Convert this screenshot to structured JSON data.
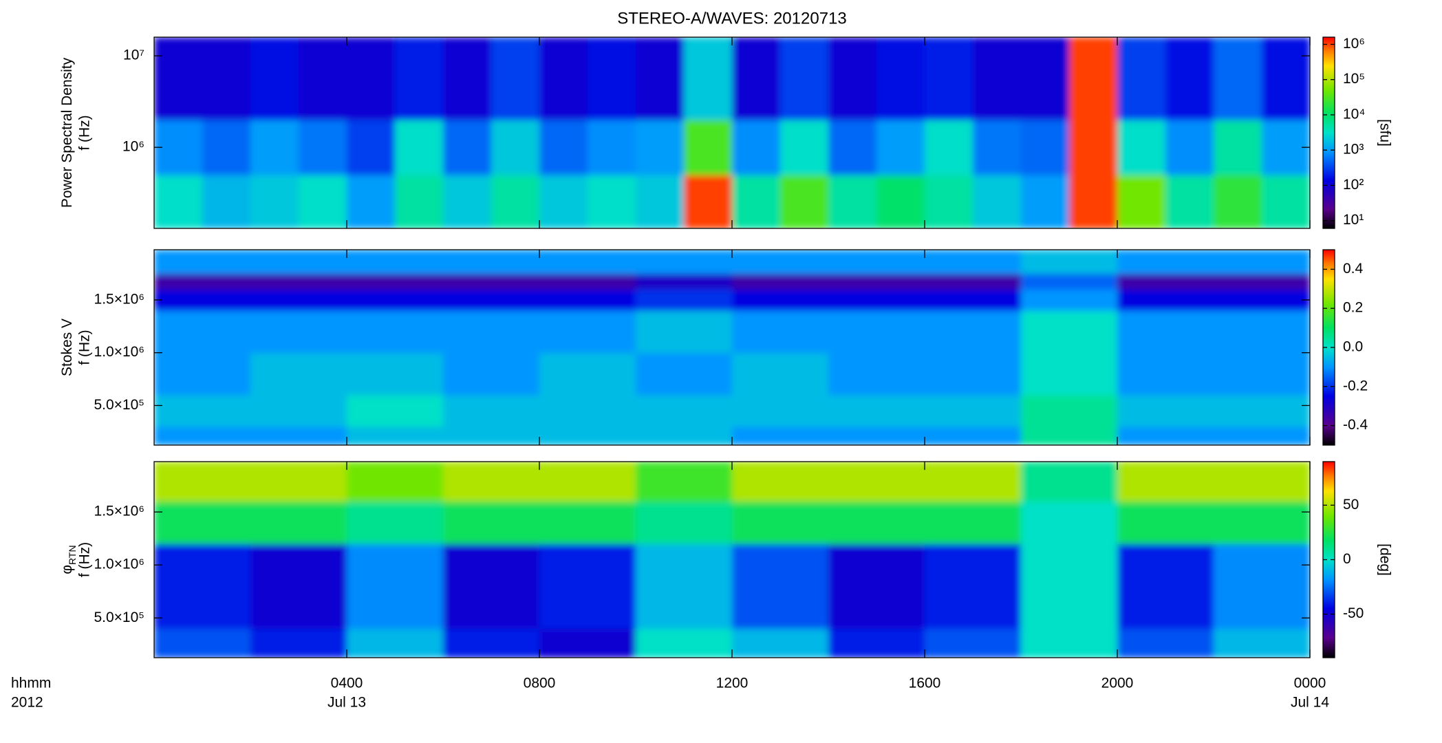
{
  "title": "STEREO-A/WAVES: 20120713",
  "x_axis": {
    "xlim": [
      0,
      24
    ],
    "xticks": [
      {
        "value": 4,
        "label": "0400"
      },
      {
        "value": 8,
        "label": "0800"
      },
      {
        "value": 12,
        "label": "1200"
      },
      {
        "value": 16,
        "label": "1600"
      },
      {
        "value": 20,
        "label": "2000"
      },
      {
        "value": 24,
        "label": "0000"
      }
    ],
    "date_ticks": [
      {
        "value": 4,
        "label": "Jul 13"
      },
      {
        "value": 24,
        "label": "Jul 14"
      }
    ],
    "time_label": "hhmm",
    "year_label": "2012"
  },
  "chart_data": [
    {
      "type": "heatmap",
      "y_label": "Power Spectral Density",
      "y_sublabel": "f (Hz)",
      "y_log": true,
      "ylim": [
        130000,
        16000000
      ],
      "yticks": [
        {
          "value": 1000000,
          "label": "10⁶"
        },
        {
          "value": 10000000,
          "label": "10⁷"
        }
      ],
      "color_log": true,
      "clim": [
        6,
        1600000
      ],
      "cticks": [
        {
          "value": 10,
          "label": "10¹"
        },
        {
          "value": 100,
          "label": "10²"
        },
        {
          "value": 1000,
          "label": "10³"
        },
        {
          "value": 10000,
          "label": "10⁴"
        },
        {
          "value": 100000,
          "label": "10⁵"
        },
        {
          "value": 1000000,
          "label": "10⁶"
        }
      ],
      "color_label": "[sfu]",
      "x_bins": [
        0,
        1,
        2,
        3,
        4,
        5,
        6,
        7,
        8,
        9,
        10,
        11,
        12,
        13,
        14,
        15,
        16,
        17,
        18,
        19,
        20,
        21,
        22,
        23,
        24
      ],
      "y_bins": [
        130000,
        500000,
        2000000,
        16000000
      ],
      "values": [
        [
          3000,
          1500,
          2000,
          3000,
          1000,
          5000,
          2000,
          5000,
          2000,
          3000,
          2000,
          1000000,
          5000,
          30000,
          5000,
          10000,
          5000,
          2000,
          1000,
          1000000,
          50000,
          5000,
          20000,
          5000
        ],
        [
          800,
          500,
          1000,
          600,
          300,
          3000,
          500,
          2000,
          500,
          800,
          1000,
          30000,
          800,
          3000,
          500,
          1000,
          3000,
          600,
          500,
          1000000,
          3000,
          800,
          5000,
          1000
        ],
        [
          100,
          100,
          150,
          100,
          100,
          200,
          100,
          300,
          100,
          150,
          100,
          2000,
          100,
          300,
          100,
          150,
          200,
          100,
          100,
          1000000,
          300,
          150,
          500,
          150
        ]
      ]
    },
    {
      "type": "heatmap",
      "y_label": "Stokes V",
      "y_sublabel": "f (Hz)",
      "y_log": false,
      "ylim": [
        125000,
        1975000
      ],
      "yticks": [
        {
          "value": 500000,
          "label": "5.0×10⁵"
        },
        {
          "value": 1000000,
          "label": "1.0×10⁶"
        },
        {
          "value": 1500000,
          "label": "1.5×10⁶"
        }
      ],
      "color_log": false,
      "clim": [
        -0.5,
        0.5
      ],
      "cticks": [
        -0.4,
        -0.2,
        {
          "value": 0,
          "label": "0.0"
        },
        0.2,
        0.4
      ],
      "x_bins": [
        0,
        2,
        4,
        6,
        8,
        10,
        12,
        14,
        16,
        18,
        20,
        22,
        24
      ],
      "y_bins": [
        125000,
        300000,
        600000,
        1000000,
        1400000,
        1600000,
        1750000,
        1975000
      ],
      "values": [
        [
          -0.1,
          -0.1,
          -0.05,
          -0.05,
          -0.05,
          -0.05,
          -0.1,
          -0.1,
          -0.1,
          0.05,
          -0.1,
          -0.1
        ],
        [
          -0.05,
          -0.05,
          0,
          -0.05,
          -0.05,
          -0.05,
          -0.05,
          -0.05,
          -0.05,
          0.05,
          -0.05,
          -0.05
        ],
        [
          -0.1,
          -0.05,
          -0.05,
          -0.1,
          -0.05,
          -0.1,
          -0.05,
          -0.1,
          -0.1,
          0,
          -0.1,
          -0.1
        ],
        [
          -0.1,
          -0.1,
          -0.1,
          -0.1,
          -0.1,
          -0.05,
          -0.1,
          -0.1,
          -0.1,
          0,
          -0.1,
          -0.1
        ],
        [
          -0.25,
          -0.25,
          -0.25,
          -0.25,
          -0.25,
          -0.2,
          -0.25,
          -0.25,
          -0.25,
          -0.1,
          -0.25,
          -0.25
        ],
        [
          -0.35,
          -0.35,
          -0.35,
          -0.35,
          -0.35,
          -0.3,
          -0.35,
          -0.35,
          -0.35,
          -0.15,
          -0.35,
          -0.35
        ],
        [
          -0.1,
          -0.1,
          -0.1,
          -0.1,
          -0.1,
          -0.1,
          -0.1,
          -0.1,
          -0.1,
          -0.05,
          -0.1,
          -0.1
        ]
      ]
    },
    {
      "type": "heatmap",
      "y_label": "φ",
      "y_label_sub": "RTN",
      "y_sublabel": "f (Hz)",
      "y_log": false,
      "ylim": [
        125000,
        1975000
      ],
      "yticks": [
        {
          "value": 500000,
          "label": "5.0×10⁵"
        },
        {
          "value": 1000000,
          "label": "1.0×10⁶"
        },
        {
          "value": 1500000,
          "label": "1.5×10⁶"
        }
      ],
      "color_log": false,
      "clim": [
        -90,
        90
      ],
      "cticks": [
        -50,
        0,
        50
      ],
      "color_label": "[deg]",
      "x_bins": [
        0,
        2,
        4,
        6,
        8,
        10,
        12,
        14,
        16,
        18,
        20,
        22,
        24
      ],
      "y_bins": [
        125000,
        400000,
        1200000,
        1600000,
        1975000
      ],
      "values": [
        [
          -30,
          -40,
          -10,
          -40,
          -50,
          0,
          -10,
          -40,
          -30,
          0,
          -30,
          -10
        ],
        [
          -40,
          -50,
          -20,
          -50,
          -40,
          -10,
          -30,
          -50,
          -40,
          0,
          -40,
          -20
        ],
        [
          20,
          20,
          10,
          20,
          20,
          10,
          20,
          20,
          20,
          0,
          20,
          20
        ],
        [
          50,
          50,
          40,
          50,
          50,
          30,
          50,
          50,
          50,
          10,
          50,
          50
        ]
      ]
    }
  ]
}
